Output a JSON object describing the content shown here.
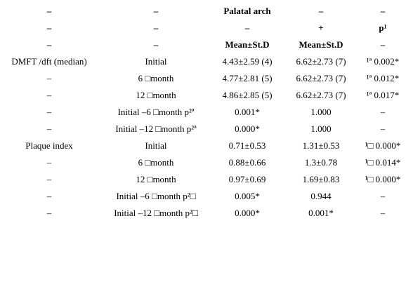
{
  "table": {
    "rows": [
      [
        "–",
        "–",
        "Palatal arch",
        "–",
        "–"
      ],
      [
        "–",
        "–",
        "–",
        "+",
        "p¹"
      ],
      [
        "–",
        "–",
        "Mean±St.D",
        "Mean±St.D",
        "–"
      ],
      [
        "DMFT /dft (median)",
        "Initial",
        "4.43±2.59 (4)",
        "6.62±2.73 (7)",
        "¹ª 0.002*"
      ],
      [
        "–",
        "6 □month",
        "4.77±2.81 (5)",
        "6.62±2.73 (7)",
        "¹ª 0.012*"
      ],
      [
        "–",
        "12 □month",
        "4.86±2.85 (5)",
        "6.62±2.73 (7)",
        "¹ª 0.017*"
      ],
      [
        "–",
        "Initial –6 □month p²ª",
        "0.001*",
        "1.000",
        "–"
      ],
      [
        "–",
        "Initial –12 □month p²ª",
        "0.000*",
        "1.000",
        "–"
      ],
      [
        "Plaque index",
        "Initial",
        "0.71±0.53",
        "1.31±0.53",
        "¹□ 0.000*"
      ],
      [
        "–",
        "6 □month",
        "0.88±0.66",
        "1.3±0.78",
        "¹□ 0.014*"
      ],
      [
        "–",
        "12 □month",
        "0.97±0.69",
        "1.69±0.83",
        "¹□ 0.000*"
      ],
      [
        "–",
        "Initial –6 □month p²□",
        "0.005*",
        "0.944",
        "–"
      ],
      [
        "–",
        "Initial –12 □month p²□",
        "0.000*",
        "0.001*",
        "–"
      ]
    ]
  }
}
